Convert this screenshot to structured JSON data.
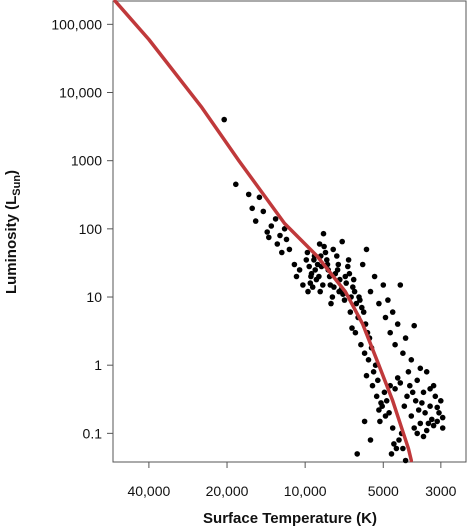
{
  "chart_data": {
    "type": "scatter",
    "xlabel": "Surface Temperature (K)",
    "ylabel": "Luminosity (L",
    "ylabel_sub": "Sun",
    "ylabel_close": ")",
    "x_scale": "log-reversed",
    "y_scale": "log",
    "xlim": [
      55000,
      2400
    ],
    "ylim": [
      0.038,
      220000
    ],
    "grid": false,
    "x_ticks": [
      {
        "value": 40000,
        "label": "40,000"
      },
      {
        "value": 20000,
        "label": "20,000"
      },
      {
        "value": 10000,
        "label": "10,000"
      },
      {
        "value": 5000,
        "label": "5000"
      },
      {
        "value": 3000,
        "label": "3000"
      }
    ],
    "y_ticks": [
      {
        "value": 100000,
        "label": "100,000"
      },
      {
        "value": 10000,
        "label": "10,000"
      },
      {
        "value": 1000,
        "label": "1000"
      },
      {
        "value": 100,
        "label": "100"
      },
      {
        "value": 10,
        "label": "10"
      },
      {
        "value": 1,
        "label": "1"
      },
      {
        "value": 0.1,
        "label": "0.1"
      }
    ],
    "main_sequence_color": "#c0393b",
    "point_color": "#000000",
    "main_sequence_line": [
      {
        "x": 54000,
        "y": 220000
      },
      {
        "x": 40000,
        "y": 60000
      },
      {
        "x": 25000,
        "y": 6000
      },
      {
        "x": 18000,
        "y": 1000
      },
      {
        "x": 12000,
        "y": 120
      },
      {
        "x": 9000,
        "y": 40
      },
      {
        "x": 7000,
        "y": 12
      },
      {
        "x": 6000,
        "y": 4
      },
      {
        "x": 5200,
        "y": 1
      },
      {
        "x": 4600,
        "y": 0.3
      },
      {
        "x": 4000,
        "y": 0.06
      },
      {
        "x": 3900,
        "y": 0.04
      }
    ],
    "points": [
      [
        20500,
        4000
      ],
      [
        18500,
        450
      ],
      [
        16500,
        320
      ],
      [
        16000,
        200
      ],
      [
        15000,
        290
      ],
      [
        15500,
        130
      ],
      [
        14000,
        90
      ],
      [
        13000,
        140
      ],
      [
        12500,
        80
      ],
      [
        12800,
        60
      ],
      [
        13500,
        110
      ],
      [
        12000,
        100
      ],
      [
        11500,
        50
      ],
      [
        11000,
        30
      ],
      [
        10500,
        25
      ],
      [
        9800,
        45
      ],
      [
        9500,
        20
      ],
      [
        10200,
        15
      ],
      [
        9200,
        40
      ],
      [
        8800,
        60
      ],
      [
        8500,
        85
      ],
      [
        8200,
        30
      ],
      [
        8000,
        15
      ],
      [
        7800,
        50
      ],
      [
        7500,
        25
      ],
      [
        7200,
        65
      ],
      [
        7000,
        20
      ],
      [
        6800,
        35
      ],
      [
        6500,
        18
      ],
      [
        6200,
        10
      ],
      [
        6000,
        30
      ],
      [
        5800,
        50
      ],
      [
        5600,
        12
      ],
      [
        5400,
        20
      ],
      [
        5200,
        8
      ],
      [
        5000,
        15
      ],
      [
        4900,
        5
      ],
      [
        4800,
        9
      ],
      [
        4700,
        3
      ],
      [
        4600,
        6
      ],
      [
        4500,
        2
      ],
      [
        4400,
        4
      ],
      [
        4300,
        15
      ],
      [
        4200,
        1.5
      ],
      [
        4100,
        2.5
      ],
      [
        4000,
        0.8
      ],
      [
        3900,
        1.2
      ],
      [
        3800,
        3.8
      ],
      [
        3700,
        0.6
      ],
      [
        3600,
        0.9
      ],
      [
        3500,
        0.4
      ],
      [
        3400,
        0.8
      ],
      [
        3300,
        0.25
      ],
      [
        3200,
        0.5
      ],
      [
        3100,
        0.15
      ],
      [
        3050,
        0.2
      ],
      [
        3000,
        0.3
      ],
      [
        2950,
        0.12
      ],
      [
        3150,
        0.35
      ],
      [
        3250,
        0.16
      ],
      [
        3350,
        0.14
      ],
      [
        3450,
        0.2
      ],
      [
        3550,
        0.28
      ],
      [
        3650,
        0.22
      ],
      [
        3750,
        0.3
      ],
      [
        3850,
        0.4
      ],
      [
        3950,
        0.5
      ],
      [
        4050,
        0.35
      ],
      [
        4150,
        0.25
      ],
      [
        4250,
        0.1
      ],
      [
        4350,
        0.08
      ],
      [
        4450,
        0.06
      ],
      [
        4550,
        0.07
      ],
      [
        4650,
        0.05
      ],
      [
        4750,
        0.2
      ],
      [
        4850,
        0.3
      ],
      [
        4950,
        0.4
      ],
      [
        5050,
        0.25
      ],
      [
        5150,
        0.15
      ],
      [
        5250,
        0.6
      ],
      [
        5350,
        1
      ],
      [
        5450,
        0.8
      ],
      [
        5550,
        1.8
      ],
      [
        5650,
        2.5
      ],
      [
        5750,
        3
      ],
      [
        5850,
        4
      ],
      [
        5950,
        6
      ],
      [
        6050,
        7
      ],
      [
        6150,
        9
      ],
      [
        6250,
        5
      ],
      [
        6350,
        8
      ],
      [
        6450,
        12
      ],
      [
        6550,
        14
      ],
      [
        6650,
        10
      ],
      [
        6750,
        22
      ],
      [
        6850,
        28
      ],
      [
        6950,
        16
      ],
      [
        7050,
        9
      ],
      [
        7150,
        11
      ],
      [
        7250,
        13
      ],
      [
        7350,
        18
      ],
      [
        7450,
        30
      ],
      [
        7550,
        40
      ],
      [
        7650,
        22
      ],
      [
        7750,
        14
      ],
      [
        7850,
        10
      ],
      [
        7950,
        8
      ],
      [
        8050,
        20
      ],
      [
        8150,
        25
      ],
      [
        8250,
        35
      ],
      [
        8350,
        45
      ],
      [
        8450,
        55
      ],
      [
        8550,
        15
      ],
      [
        8650,
        28
      ],
      [
        8750,
        12
      ],
      [
        8850,
        20
      ],
      [
        8950,
        30
      ],
      [
        9050,
        18
      ],
      [
        9150,
        25
      ],
      [
        9250,
        35
      ],
      [
        9350,
        14
      ],
      [
        9450,
        22
      ],
      [
        9550,
        16
      ],
      [
        9650,
        28
      ],
      [
        9750,
        12
      ],
      [
        5600,
        0.08
      ],
      [
        5900,
        0.15
      ],
      [
        6300,
        0.05
      ],
      [
        4200,
        0.06
      ],
      [
        4100,
        0.04
      ],
      [
        6400,
        3
      ],
      [
        6100,
        2
      ],
      [
        5900,
        1.5
      ],
      [
        5700,
        1.2
      ],
      [
        5500,
        0.5
      ],
      [
        5300,
        0.35
      ],
      [
        5100,
        0.28
      ],
      [
        4500,
        0.45
      ],
      [
        4400,
        0.65
      ],
      [
        4300,
        0.55
      ],
      [
        3900,
        0.18
      ],
      [
        3800,
        0.12
      ],
      [
        3700,
        0.1
      ],
      [
        3600,
        0.14
      ],
      [
        3500,
        0.09
      ],
      [
        3400,
        0.11
      ],
      [
        3200,
        0.13
      ],
      [
        3100,
        0.24
      ],
      [
        2950,
        0.17
      ],
      [
        3300,
        0.45
      ],
      [
        12300,
        45
      ],
      [
        11800,
        70
      ],
      [
        14500,
        180
      ],
      [
        13800,
        75
      ],
      [
        10800,
        20
      ],
      [
        9900,
        35
      ],
      [
        8700,
        40
      ],
      [
        7400,
        12
      ],
      [
        6700,
        6
      ],
      [
        6600,
        3.5
      ],
      [
        5800,
        0.7
      ],
      [
        5200,
        0.22
      ],
      [
        4900,
        0.18
      ],
      [
        4700,
        0.5
      ],
      [
        4600,
        0.12
      ]
    ]
  }
}
